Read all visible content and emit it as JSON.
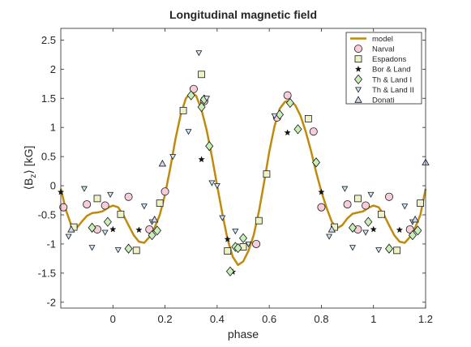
{
  "chart_data": {
    "type": "scatter",
    "title": "Longitudinal magnetic field",
    "xlabel": "phase",
    "ylabel": "⟨B",
    "ylabel_sub": "z",
    "ylabel_unit": "⟩ [kG]",
    "xlim": [
      -0.2,
      1.2
    ],
    "ylim": [
      -2.1,
      2.7
    ],
    "xticks": [
      0,
      0.2,
      0.4,
      0.6,
      0.8,
      1,
      1.2
    ],
    "xtick_labels": [
      "0",
      "0.2",
      "0.4",
      "0.6",
      "0.8",
      "1",
      "1.2"
    ],
    "yticks": [
      -2,
      -1.5,
      -1,
      -0.5,
      0,
      0.5,
      1,
      1.5,
      2,
      2.5
    ],
    "ytick_labels": [
      "-2",
      "-1.5",
      "-1",
      "-0.5",
      "0",
      "0.5",
      "1",
      "1.5",
      "2",
      "2.5"
    ],
    "grid": false,
    "legend_position": "top-right",
    "model": {
      "name": "model",
      "color": "#c08a0c",
      "points": [
        [
          -0.2,
          -0.05
        ],
        [
          -0.18,
          -0.42
        ],
        [
          -0.16,
          -0.68
        ],
        [
          -0.14,
          -0.73
        ],
        [
          -0.12,
          -0.62
        ],
        [
          -0.1,
          -0.52
        ],
        [
          -0.08,
          -0.47
        ],
        [
          -0.06,
          -0.46
        ],
        [
          -0.04,
          -0.44
        ],
        [
          -0.02,
          -0.38
        ],
        [
          0.0,
          -0.34
        ],
        [
          0.02,
          -0.37
        ],
        [
          0.04,
          -0.5
        ],
        [
          0.06,
          -0.68
        ],
        [
          0.08,
          -0.85
        ],
        [
          0.1,
          -0.96
        ],
        [
          0.12,
          -0.98
        ],
        [
          0.14,
          -0.88
        ],
        [
          0.16,
          -0.72
        ],
        [
          0.18,
          -0.5
        ],
        [
          0.2,
          -0.15
        ],
        [
          0.22,
          0.3
        ],
        [
          0.24,
          0.8
        ],
        [
          0.26,
          1.22
        ],
        [
          0.28,
          1.5
        ],
        [
          0.3,
          1.6
        ],
        [
          0.32,
          1.54
        ],
        [
          0.34,
          1.3
        ],
        [
          0.36,
          0.95
        ],
        [
          0.38,
          0.5
        ],
        [
          0.4,
          0.0
        ],
        [
          0.42,
          -0.48
        ],
        [
          0.44,
          -0.92
        ],
        [
          0.46,
          -1.22
        ],
        [
          0.48,
          -1.36
        ],
        [
          0.5,
          -1.3
        ],
        [
          0.52,
          -1.12
        ],
        [
          0.54,
          -0.85
        ],
        [
          0.56,
          -0.45
        ],
        [
          0.58,
          0.05
        ],
        [
          0.6,
          0.58
        ],
        [
          0.62,
          1.02
        ],
        [
          0.64,
          1.32
        ],
        [
          0.66,
          1.44
        ],
        [
          0.68,
          1.46
        ],
        [
          0.7,
          1.38
        ],
        [
          0.72,
          1.2
        ],
        [
          0.74,
          0.93
        ],
        [
          0.76,
          0.6
        ],
        [
          0.78,
          0.23
        ],
        [
          0.8,
          -0.1
        ],
        [
          0.82,
          -0.38
        ],
        [
          0.84,
          -0.62
        ],
        [
          0.86,
          -0.73
        ],
        [
          0.88,
          -0.68
        ],
        [
          0.9,
          -0.56
        ],
        [
          0.92,
          -0.48
        ],
        [
          0.94,
          -0.46
        ],
        [
          0.96,
          -0.44
        ],
        [
          0.98,
          -0.38
        ],
        [
          1.0,
          -0.34
        ],
        [
          1.02,
          -0.37
        ],
        [
          1.04,
          -0.5
        ],
        [
          1.06,
          -0.68
        ],
        [
          1.08,
          -0.85
        ],
        [
          1.1,
          -0.96
        ],
        [
          1.12,
          -0.98
        ],
        [
          1.14,
          -0.88
        ],
        [
          1.16,
          -0.72
        ],
        [
          1.18,
          -0.5
        ],
        [
          1.2,
          -0.05
        ]
      ]
    },
    "series": [
      {
        "name": "Narval",
        "marker": "circle",
        "fill": "#f7cdd9",
        "points": [
          [
            -0.19,
            -0.37
          ],
          [
            -0.1,
            -0.32
          ],
          [
            -0.06,
            -0.75
          ],
          [
            -0.03,
            -0.34
          ],
          [
            0.06,
            -0.19
          ],
          [
            0.14,
            -0.75
          ],
          [
            0.2,
            -0.1
          ],
          [
            0.31,
            1.66
          ],
          [
            0.35,
            1.45
          ],
          [
            0.55,
            -1.0
          ],
          [
            0.63,
            1.17
          ],
          [
            0.67,
            1.55
          ],
          [
            0.77,
            0.93
          ],
          [
            0.8,
            -0.37
          ],
          [
            0.9,
            -0.32
          ],
          [
            0.94,
            -0.75
          ],
          [
            0.97,
            -0.34
          ],
          [
            1.06,
            -0.19
          ],
          [
            1.14,
            -0.75
          ]
        ]
      },
      {
        "name": "Espadons",
        "marker": "square",
        "fill": "#eef2c4",
        "points": [
          [
            -0.15,
            -0.71
          ],
          [
            -0.06,
            -0.22
          ],
          [
            0.03,
            -0.49
          ],
          [
            0.09,
            -1.11
          ],
          [
            0.18,
            -0.3
          ],
          [
            0.27,
            1.29
          ],
          [
            0.34,
            1.91
          ],
          [
            0.44,
            -1.12
          ],
          [
            0.5,
            -1.05
          ],
          [
            0.56,
            -0.6
          ],
          [
            0.59,
            0.2
          ],
          [
            0.75,
            1.15
          ],
          [
            0.85,
            -0.71
          ],
          [
            0.94,
            -0.22
          ],
          [
            1.03,
            -0.49
          ],
          [
            1.09,
            -1.11
          ],
          [
            1.18,
            -0.3
          ]
        ]
      },
      {
        "name": "Bor & Land",
        "marker": "star",
        "fill": "#111111",
        "points": [
          [
            -0.2,
            -0.11
          ],
          [
            0.0,
            -0.75
          ],
          [
            0.1,
            -0.76
          ],
          [
            0.34,
            0.45
          ],
          [
            0.35,
            1.5
          ],
          [
            0.44,
            -0.92
          ],
          [
            0.46,
            -1.48
          ],
          [
            0.67,
            0.91
          ],
          [
            0.8,
            -0.11
          ],
          [
            1.0,
            -0.75
          ],
          [
            1.1,
            -0.76
          ]
        ]
      },
      {
        "name": "Th & Land I",
        "marker": "diamond",
        "fill": "#c9efb9",
        "points": [
          [
            -0.08,
            -0.72
          ],
          [
            -0.02,
            -0.62
          ],
          [
            0.06,
            -1.08
          ],
          [
            0.15,
            -0.85
          ],
          [
            0.17,
            -0.77
          ],
          [
            0.3,
            1.55
          ],
          [
            0.34,
            1.35
          ],
          [
            0.35,
            1.48
          ],
          [
            0.37,
            0.68
          ],
          [
            0.45,
            -1.47
          ],
          [
            0.47,
            -1.05
          ],
          [
            0.48,
            -1.07
          ],
          [
            0.5,
            -0.9
          ],
          [
            0.64,
            1.22
          ],
          [
            0.68,
            1.42
          ],
          [
            0.71,
            0.97
          ],
          [
            0.78,
            0.4
          ],
          [
            0.92,
            -0.72
          ],
          [
            0.98,
            -0.62
          ],
          [
            1.06,
            -1.08
          ],
          [
            1.15,
            -0.85
          ],
          [
            1.17,
            -0.77
          ]
        ]
      },
      {
        "name": "Th & Land II",
        "marker": "triangle-down",
        "fill": "#cfe7f7",
        "points": [
          [
            -0.17,
            -0.87
          ],
          [
            -0.11,
            -0.05
          ],
          [
            -0.08,
            -1.06
          ],
          [
            -0.03,
            -0.8
          ],
          [
            -0.01,
            -0.15
          ],
          [
            0.02,
            -1.1
          ],
          [
            0.12,
            -0.35
          ],
          [
            0.15,
            -0.62
          ],
          [
            0.23,
            0.5
          ],
          [
            0.29,
            0.93
          ],
          [
            0.33,
            2.28
          ],
          [
            0.36,
            1.5
          ],
          [
            0.38,
            0.05
          ],
          [
            0.4,
            0.0
          ],
          [
            0.42,
            -0.55
          ],
          [
            0.47,
            -0.78
          ],
          [
            0.52,
            -1.0
          ],
          [
            0.62,
            1.2
          ],
          [
            0.83,
            -0.87
          ],
          [
            0.89,
            -0.05
          ],
          [
            0.92,
            -1.06
          ],
          [
            0.97,
            -0.8
          ],
          [
            0.99,
            -0.15
          ],
          [
            1.02,
            -1.1
          ],
          [
            1.12,
            -0.35
          ],
          [
            1.15,
            -0.62
          ]
        ]
      },
      {
        "name": "Donati",
        "marker": "triangle-up",
        "fill": "#cdd8f2",
        "points": [
          [
            -0.16,
            -0.75
          ],
          [
            0.16,
            -0.58
          ],
          [
            0.19,
            0.38
          ],
          [
            0.84,
            -0.75
          ],
          [
            1.16,
            -0.58
          ],
          [
            1.2,
            0.4
          ]
        ]
      }
    ]
  }
}
